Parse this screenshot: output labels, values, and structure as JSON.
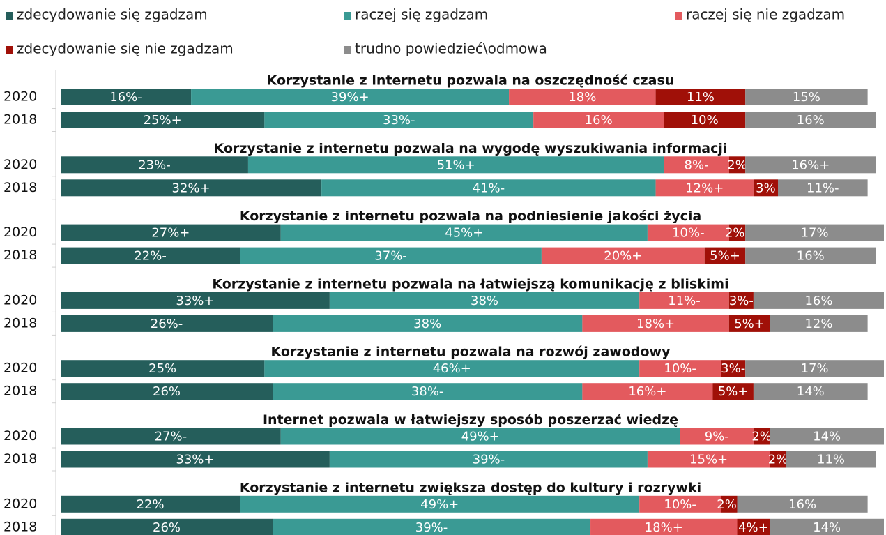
{
  "chart_data": {
    "type": "bar",
    "orientation": "horizontal",
    "stacked": true,
    "legend": "top",
    "group_titles": [
      "Korzystanie z internetu pozwala na oszczędność czasu",
      "Korzystanie z internetu pozwala na wygodę wyszukiwania informacji",
      "Korzystanie z internetu pozwala na podniesienie jakości życia",
      "Korzystanie z internetu pozwala na łatwiejszą komunikację z bliskimi",
      "Korzystanie z internetu pozwala na rozwój zawodowy",
      "Internet pozwala w łatwiejszy sposób poszerzać wiedzę",
      "Korzystanie z internetu zwiększa dostęp do kultury i rozrywki"
    ],
    "categories": [
      "2020",
      "2018",
      "2020",
      "2018",
      "2020",
      "2018",
      "2020",
      "2018",
      "2020",
      "2018",
      "2020",
      "2018",
      "2020",
      "2018"
    ],
    "xlim": [
      0,
      101
    ],
    "series": [
      {
        "name": "zdecydowanie się zgadzam",
        "color": "#255e5b",
        "values": [
          16,
          25,
          23,
          32,
          27,
          22,
          33,
          26,
          25,
          26,
          27,
          33,
          22,
          26
        ],
        "value_labels": [
          "16%-",
          "25%+",
          "23%-",
          "32%+",
          "27%+",
          "22%-",
          "33%+",
          "26%-",
          "25%",
          "26%",
          "27%-",
          "33%+",
          "22%",
          "26%"
        ]
      },
      {
        "name": "raczej się zgadzam",
        "color": "#3a9a94",
        "values": [
          39,
          33,
          51,
          41,
          45,
          37,
          38,
          38,
          46,
          38,
          49,
          39,
          49,
          39
        ],
        "value_labels": [
          "39%+",
          "33%-",
          "51%+",
          "41%-",
          "45%+",
          "37%-",
          "38%",
          "38%",
          "46%+",
          "38%-",
          "49%+",
          "39%-",
          "49%+",
          "39%-"
        ]
      },
      {
        "name": "raczej się nie zgadzam",
        "color": "#e35a5e",
        "values": [
          18,
          16,
          8,
          12,
          10,
          20,
          11,
          18,
          10,
          16,
          9,
          15,
          10,
          18
        ],
        "value_labels": [
          "18%",
          "16%",
          "8%-",
          "12%+",
          "10%-",
          "20%+",
          "11%-",
          "18%+",
          "10%-",
          "16%+",
          "9%-",
          "15%+",
          "10%-",
          "18%+"
        ]
      },
      {
        "name": "zdecydowanie się nie zgadzam",
        "color": "#a01008",
        "values": [
          11,
          10,
          2,
          3,
          2,
          5,
          3,
          5,
          3,
          5,
          2,
          2,
          2,
          4
        ],
        "value_labels": [
          "11%",
          "10%",
          "2%",
          "3%",
          "2%-",
          "5%+",
          "3%-",
          "5%+",
          "3%-",
          "5%+",
          "2%",
          "2%",
          "2%-",
          "4%+"
        ]
      },
      {
        "name": "trudno powiedzieć\\odmowa",
        "color": "#8c8c8c",
        "values": [
          15,
          16,
          16,
          11,
          17,
          16,
          16,
          12,
          17,
          14,
          14,
          11,
          16,
          14
        ],
        "value_labels": [
          "15%",
          "16%",
          "16%+",
          "11%-",
          "17%",
          "16%",
          "16%",
          "12%",
          "17%",
          "14%",
          "14%",
          "11%",
          "16%",
          "14%"
        ]
      }
    ]
  }
}
